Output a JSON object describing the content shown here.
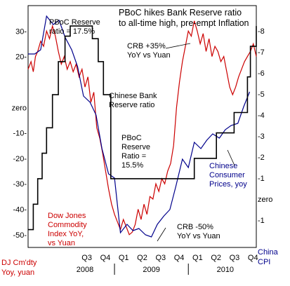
{
  "chart_data": {
    "type": "line",
    "title": "PBoC hikes Bank Reserve ratio to all-time high, pre-empt Inflation",
    "title_lines": [
      "PBoC hikes Bank Reserve ratio",
      "to all-time high, pre-empt Inflation"
    ],
    "x_range": [
      2007.83,
      2010.92
    ],
    "x_quarters": [
      {
        "label": "Q3",
        "x": 2008.625
      },
      {
        "label": "Q4",
        "x": 2008.875
      },
      {
        "label": "Q1",
        "x": 2009.125
      },
      {
        "label": "Q2",
        "x": 2009.375
      },
      {
        "label": "Q3",
        "x": 2009.625
      },
      {
        "label": "Q4",
        "x": 2009.875
      },
      {
        "label": "Q1",
        "x": 2010.125
      },
      {
        "label": "Q2",
        "x": 2010.375
      },
      {
        "label": "Q3",
        "x": 2010.625
      },
      {
        "label": "Q4",
        "x": 2010.875
      }
    ],
    "x_years": [
      {
        "label": "2008",
        "x": 2008.6
      },
      {
        "label": "2009",
        "x": 2009.5
      },
      {
        "label": "2010",
        "x": 2010.5
      }
    ],
    "x_year_dividers": [
      2009.0,
      2010.0
    ],
    "left_axis": {
      "range": [
        -55,
        40
      ],
      "ticks": [
        {
          "label": "30-",
          "value": 30
        },
        {
          "label": "20-",
          "value": 20
        },
        {
          "label": "zero",
          "value": 0
        },
        {
          "label": "-10-",
          "value": -10
        },
        {
          "label": "-20-",
          "value": -20
        },
        {
          "label": "-30-",
          "value": -30
        },
        {
          "label": "-40-",
          "value": -40
        },
        {
          "label": "-50-",
          "value": -50
        }
      ]
    },
    "right_axis": {
      "range": [
        -2.3,
        9.2
      ],
      "ticks": [
        {
          "label": "-8",
          "value": 8
        },
        {
          "label": "-7",
          "value": 7
        },
        {
          "label": "-6",
          "value": 6
        },
        {
          "label": "-5",
          "value": 5
        },
        {
          "label": "-4",
          "value": 4
        },
        {
          "label": "-3",
          "value": 3
        },
        {
          "label": "-2",
          "value": 2
        },
        {
          "label": "-1",
          "value": 1
        },
        {
          "label": "zero",
          "value": 0
        },
        {
          "label": "-1",
          "value": -1
        }
      ]
    },
    "series": [
      {
        "name": "Dow Jones Commodity Index YoY, vs Yuan",
        "axis": "left",
        "color": "#cc0000",
        "x": [
          2007.83,
          2007.87,
          2007.9,
          2007.93,
          2007.96,
          2008.0,
          2008.04,
          2008.08,
          2008.12,
          2008.16,
          2008.2,
          2008.24,
          2008.28,
          2008.32,
          2008.36,
          2008.4,
          2008.44,
          2008.48,
          2008.52,
          2008.56,
          2008.6,
          2008.64,
          2008.68,
          2008.72,
          2008.76,
          2008.8,
          2008.84,
          2008.88,
          2008.92,
          2008.96,
          2009.0,
          2009.04,
          2009.08,
          2009.12,
          2009.16,
          2009.2,
          2009.24,
          2009.28,
          2009.32,
          2009.36,
          2009.4,
          2009.44,
          2009.48,
          2009.52,
          2009.56,
          2009.6,
          2009.64,
          2009.68,
          2009.72,
          2009.76,
          2009.8,
          2009.84,
          2009.88,
          2009.92,
          2009.96,
          2010.0,
          2010.04,
          2010.08,
          2010.12,
          2010.16,
          2010.2,
          2010.24,
          2010.28,
          2010.32,
          2010.36,
          2010.4,
          2010.44,
          2010.48,
          2010.52,
          2010.56,
          2010.6,
          2010.64,
          2010.68,
          2010.72,
          2010.76,
          2010.8,
          2010.84,
          2010.88,
          2010.92
        ],
        "y": [
          15,
          18,
          14,
          20,
          22,
          26,
          24,
          30,
          27,
          32,
          28,
          22,
          17,
          20,
          15,
          18,
          14,
          17,
          12,
          15,
          8,
          12,
          2,
          6,
          -8,
          -12,
          -18,
          -25,
          -32,
          -38,
          -42,
          -45,
          -48,
          -44,
          -47,
          -50,
          -49,
          -46,
          -40,
          -44,
          -38,
          -42,
          -35,
          -36,
          -30,
          -33,
          -28,
          -30,
          -25,
          -22,
          -15,
          0,
          10,
          18,
          24,
          30,
          28,
          34,
          30,
          25,
          29,
          22,
          27,
          20,
          24,
          22,
          18,
          20,
          14,
          8,
          5,
          8,
          12,
          15,
          18,
          20,
          22,
          25,
          20
        ]
      },
      {
        "name": "Chinese Consumer Prices, yoy",
        "axis": "right",
        "color": "#00008b",
        "x": [
          2007.83,
          2007.92,
          2008.0,
          2008.08,
          2008.17,
          2008.25,
          2008.33,
          2008.42,
          2008.5,
          2008.58,
          2008.67,
          2008.75,
          2008.83,
          2008.92,
          2009.0,
          2009.08,
          2009.17,
          2009.25,
          2009.33,
          2009.42,
          2009.5,
          2009.58,
          2009.67,
          2009.75,
          2009.83,
          2009.92,
          2010.0,
          2010.08,
          2010.17,
          2010.25,
          2010.33,
          2010.42,
          2010.5,
          2010.58,
          2010.67,
          2010.75,
          2010.83
        ],
        "y": [
          6.9,
          6.9,
          7.1,
          8.7,
          8.3,
          8.5,
          7.7,
          7.1,
          6.3,
          4.9,
          4.6,
          4.0,
          2.4,
          1.2,
          1.0,
          -1.6,
          -1.2,
          -1.5,
          -1.4,
          -1.7,
          -1.8,
          -1.2,
          -0.8,
          -0.5,
          0.6,
          1.9,
          1.5,
          2.7,
          2.4,
          2.8,
          3.1,
          2.9,
          3.3,
          3.5,
          3.6,
          4.4,
          5.1
        ]
      },
      {
        "name": "Chinese Bank Reserve ratio",
        "axis": "left",
        "color": "#000000",
        "step": true,
        "x": [
          2007.83,
          2007.9,
          2007.96,
          2008.02,
          2008.08,
          2008.16,
          2008.24,
          2008.33,
          2008.4,
          2008.7,
          2008.78,
          2008.85,
          2008.95,
          2010.0,
          2010.08,
          2010.38,
          2010.62,
          2010.8,
          2010.84,
          2010.92
        ],
        "y": [
          -48,
          -38,
          -28,
          -18,
          -8,
          5,
          18,
          28,
          32,
          27,
          18,
          5,
          -28,
          -28,
          -20,
          -10,
          -2,
          12,
          24,
          32
        ]
      }
    ],
    "annotations": [
      {
        "lines": [
          "PBoC Reserve",
          "ratio = 17.5%"
        ],
        "color": "#000000"
      },
      {
        "lines": [
          "CRB +35%",
          "YoY vs Yuan"
        ],
        "color": "#000000"
      },
      {
        "lines": [
          "Chinese Bank",
          "Reserve ratio"
        ],
        "color": "#000000"
      },
      {
        "lines": [
          "PBoC",
          "Reserve",
          "Ratio =",
          "15.5%"
        ],
        "color": "#000000"
      },
      {
        "lines": [
          "Chinese",
          "Consumer",
          "Prices, yoy"
        ],
        "color": "#00008b"
      },
      {
        "lines": [
          "Dow Jones",
          "Commodity",
          "Index YoY,",
          "vs Yuan"
        ],
        "color": "#cc0000"
      },
      {
        "lines": [
          "CRB -50%",
          "YoY vs Yuan"
        ],
        "color": "#000000"
      }
    ],
    "axis_labels": [
      {
        "lines": [
          "DJ Cm'dty",
          "Yoy, yuan"
        ],
        "color": "#cc0000"
      },
      {
        "lines": [
          "China",
          "CPI"
        ],
        "color": "#00008b"
      }
    ],
    "colors": {
      "commodity": "#cc0000",
      "cpi": "#00008b",
      "reserve": "#000000",
      "axis": "#000000"
    }
  }
}
